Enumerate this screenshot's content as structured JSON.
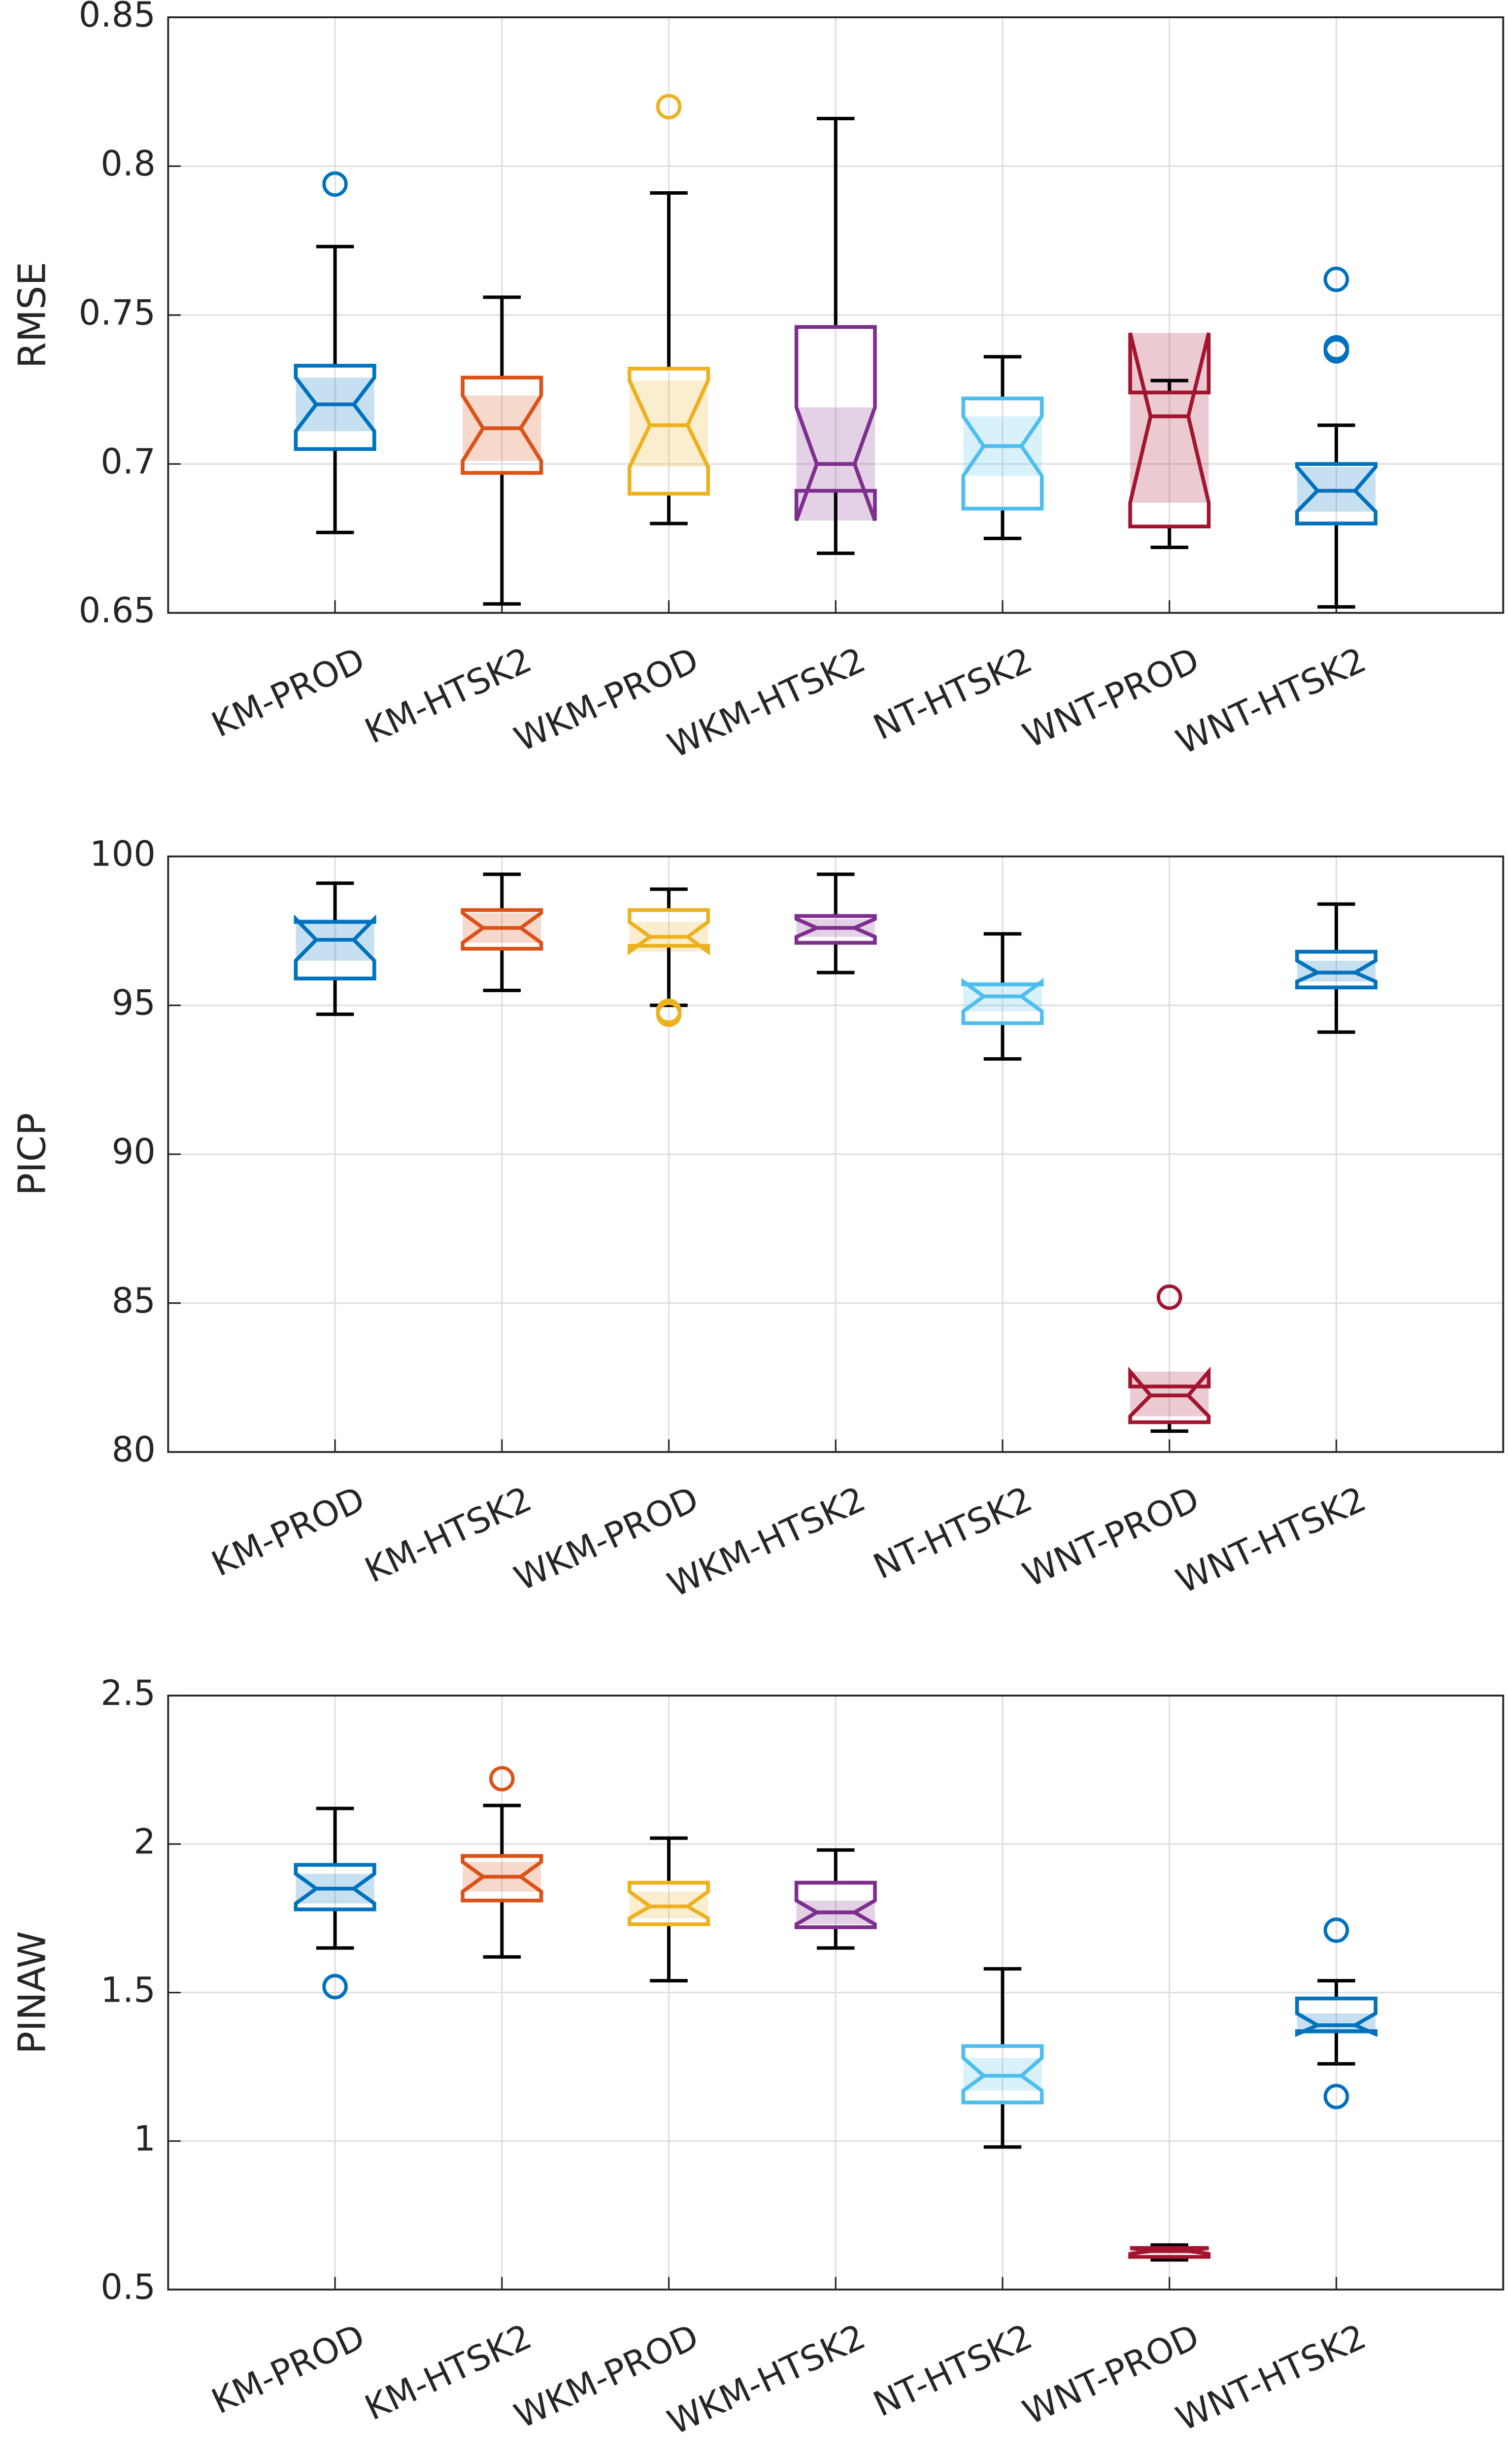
{
  "chart_data": [
    {
      "type": "box",
      "ylabel": "RMSE",
      "categories": [
        "KM-PROD",
        "KM-HTSK2",
        "WKM-PROD",
        "WKM-HTSK2",
        "NT-HTSK2",
        "WNT-PROD",
        "WNT-HTSK2"
      ],
      "colors": [
        "#0072BD",
        "#D95319",
        "#EDB120",
        "#7E2F8E",
        "#4DBEEE",
        "#A2142F",
        "#0072BD"
      ],
      "ylim": [
        0.65,
        0.85
      ],
      "yticks": [
        0.65,
        0.7,
        0.75,
        0.8,
        0.85
      ],
      "grid": true,
      "boxes": [
        {
          "whislo": 0.677,
          "q1": 0.705,
          "med": 0.72,
          "q3": 0.733,
          "whishi": 0.773,
          "notch": [
            0.711,
            0.729
          ],
          "outliers": [
            0.794
          ]
        },
        {
          "whislo": 0.653,
          "q1": 0.697,
          "med": 0.712,
          "q3": 0.729,
          "whishi": 0.756,
          "notch": [
            0.701,
            0.723
          ],
          "outliers": []
        },
        {
          "whislo": 0.68,
          "q1": 0.69,
          "med": 0.713,
          "q3": 0.732,
          "whishi": 0.791,
          "notch": [
            0.699,
            0.728
          ],
          "outliers": [
            0.82
          ]
        },
        {
          "whislo": 0.67,
          "q1": 0.691,
          "med": 0.7,
          "q3": 0.746,
          "whishi": 0.816,
          "notch": [
            0.681,
            0.719
          ],
          "outliers": []
        },
        {
          "whislo": 0.675,
          "q1": 0.685,
          "med": 0.706,
          "q3": 0.722,
          "whishi": 0.736,
          "notch": [
            0.696,
            0.716
          ],
          "outliers": []
        },
        {
          "whislo": 0.672,
          "q1": 0.679,
          "med": 0.716,
          "q3": 0.724,
          "whishi": 0.728,
          "notch": [
            0.687,
            0.744
          ],
          "outliers": []
        },
        {
          "whislo": 0.652,
          "q1": 0.68,
          "med": 0.691,
          "q3": 0.7,
          "whishi": 0.713,
          "notch": [
            0.684,
            0.699
          ],
          "outliers": [
            0.738,
            0.739,
            0.762
          ]
        }
      ]
    },
    {
      "type": "box",
      "ylabel": "PICP",
      "categories": [
        "KM-PROD",
        "KM-HTSK2",
        "WKM-PROD",
        "WKM-HTSK2",
        "NT-HTSK2",
        "WNT-PROD",
        "WNT-HTSK2"
      ],
      "colors": [
        "#0072BD",
        "#D95319",
        "#EDB120",
        "#7E2F8E",
        "#4DBEEE",
        "#A2142F",
        "#0072BD"
      ],
      "ylim": [
        80,
        100
      ],
      "yticks": [
        80,
        85,
        90,
        95,
        100
      ],
      "grid": true,
      "boxes": [
        {
          "whislo": 94.7,
          "q1": 95.9,
          "med": 97.2,
          "q3": 97.8,
          "whishi": 99.1,
          "notch": [
            96.5,
            97.9
          ],
          "outliers": []
        },
        {
          "whislo": 95.5,
          "q1": 96.9,
          "med": 97.6,
          "q3": 98.2,
          "whishi": 99.4,
          "notch": [
            97.1,
            98.1
          ],
          "outliers": []
        },
        {
          "whislo": 95.0,
          "q1": 97.0,
          "med": 97.3,
          "q3": 98.2,
          "whishi": 98.9,
          "notch": [
            96.8,
            97.8
          ],
          "outliers": [
            94.7,
            94.8
          ]
        },
        {
          "whislo": 96.1,
          "q1": 97.1,
          "med": 97.6,
          "q3": 98.0,
          "whishi": 99.4,
          "notch": [
            97.3,
            97.9
          ],
          "outliers": []
        },
        {
          "whislo": 93.2,
          "q1": 94.4,
          "med": 95.3,
          "q3": 95.7,
          "whishi": 97.4,
          "notch": [
            94.8,
            95.8
          ],
          "outliers": []
        },
        {
          "whislo": 80.7,
          "q1": 81.0,
          "med": 81.9,
          "q3": 82.2,
          "whishi": 82.2,
          "notch": [
            81.2,
            82.7
          ],
          "outliers": [
            85.2
          ]
        },
        {
          "whislo": 94.1,
          "q1": 95.6,
          "med": 96.1,
          "q3": 96.8,
          "whishi": 98.4,
          "notch": [
            95.8,
            96.5
          ],
          "outliers": []
        }
      ]
    },
    {
      "type": "box",
      "ylabel": "PINAW",
      "categories": [
        "KM-PROD",
        "KM-HTSK2",
        "WKM-PROD",
        "WKM-HTSK2",
        "NT-HTSK2",
        "WNT-PROD",
        "WNT-HTSK2"
      ],
      "colors": [
        "#0072BD",
        "#D95319",
        "#EDB120",
        "#7E2F8E",
        "#4DBEEE",
        "#A2142F",
        "#0072BD"
      ],
      "ylim": [
        0.5,
        2.5
      ],
      "yticks": [
        0.5,
        1,
        1.5,
        2,
        2.5
      ],
      "grid": true,
      "boxes": [
        {
          "whislo": 1.65,
          "q1": 1.78,
          "med": 1.85,
          "q3": 1.93,
          "whishi": 2.12,
          "notch": [
            1.8,
            1.9
          ],
          "outliers": [
            1.52
          ]
        },
        {
          "whislo": 1.62,
          "q1": 1.81,
          "med": 1.89,
          "q3": 1.96,
          "whishi": 2.13,
          "notch": [
            1.84,
            1.94
          ],
          "outliers": [
            2.22
          ]
        },
        {
          "whislo": 1.54,
          "q1": 1.73,
          "med": 1.79,
          "q3": 1.87,
          "whishi": 2.02,
          "notch": [
            1.75,
            1.84
          ],
          "outliers": []
        },
        {
          "whislo": 1.65,
          "q1": 1.72,
          "med": 1.77,
          "q3": 1.87,
          "whishi": 1.98,
          "notch": [
            1.73,
            1.81
          ],
          "outliers": []
        },
        {
          "whislo": 0.98,
          "q1": 1.13,
          "med": 1.22,
          "q3": 1.32,
          "whishi": 1.58,
          "notch": [
            1.17,
            1.28
          ],
          "outliers": []
        },
        {
          "whislo": 0.6,
          "q1": 0.61,
          "med": 0.63,
          "q3": 0.64,
          "whishi": 0.65,
          "notch": [
            0.62,
            0.64
          ],
          "outliers": []
        },
        {
          "whislo": 1.26,
          "q1": 1.37,
          "med": 1.39,
          "q3": 1.48,
          "whishi": 1.54,
          "notch": [
            1.36,
            1.43
          ],
          "outliers": [
            1.15,
            1.71
          ]
        }
      ]
    }
  ]
}
